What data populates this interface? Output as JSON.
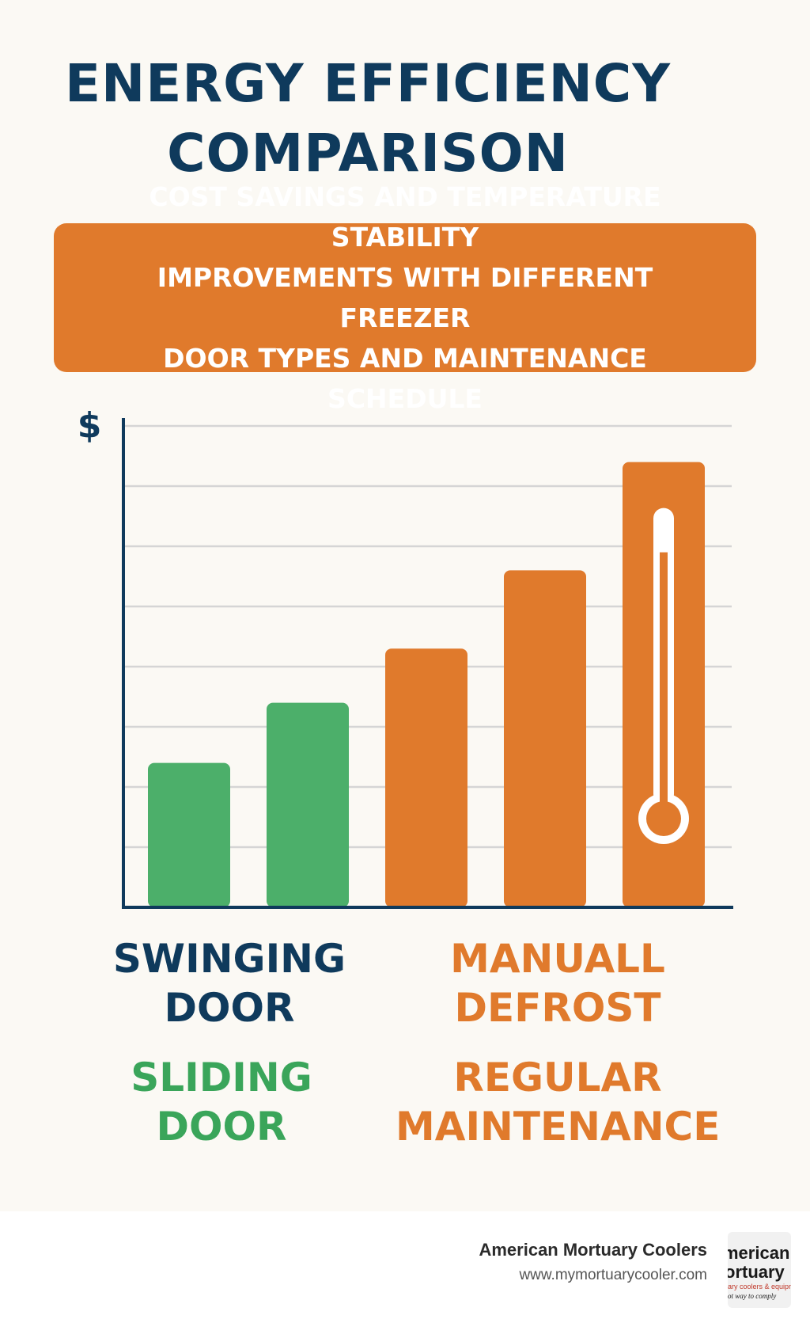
{
  "title_line1": "ENERGY EFFICIENCY",
  "title_line2": "COMPARISON",
  "subtitle_line1": "COST SAVINGS AND TEMPERATURE STABILITY",
  "subtitle_line2": "IMPROVEMENTS WITH DIFFERENT FREEZER",
  "subtitle_line3": "DOOR TYPES AND MAINTENANCE SCHEDULE",
  "colors": {
    "navy": "#0f3a5c",
    "green": "#4caf6a",
    "orange": "#e07a2c",
    "grid": "#d5d5d5",
    "background": "#fbf9f4"
  },
  "chart_data": {
    "type": "bar",
    "ylabel": "$",
    "ylim": [
      0,
      8
    ],
    "grid": true,
    "categories": [
      "",
      "",
      "",
      "",
      ""
    ],
    "values": [
      2.4,
      3.4,
      4.3,
      5.6,
      7.4
    ],
    "bar_colors": [
      "#4caf6a",
      "#4caf6a",
      "#e07a2c",
      "#e07a2c",
      "#e07a2c"
    ],
    "annotations": [
      "thermometer-icon on last bar"
    ]
  },
  "labels": {
    "swinging": [
      "SWINGING",
      "DOOR"
    ],
    "sliding": [
      "SLIDING",
      "DOOR"
    ],
    "defrost": [
      "MANUALL",
      "DEFROST"
    ],
    "maintenance": [
      "REGULAR",
      "MAINTENANCE"
    ]
  },
  "footer": {
    "brand": "American Mortuary Coolers",
    "url": "www.mymortuarycooler.com",
    "logo_text": [
      "merican",
      "ortuary",
      "ary coolers & equipment",
      "ot way to comply"
    ]
  }
}
